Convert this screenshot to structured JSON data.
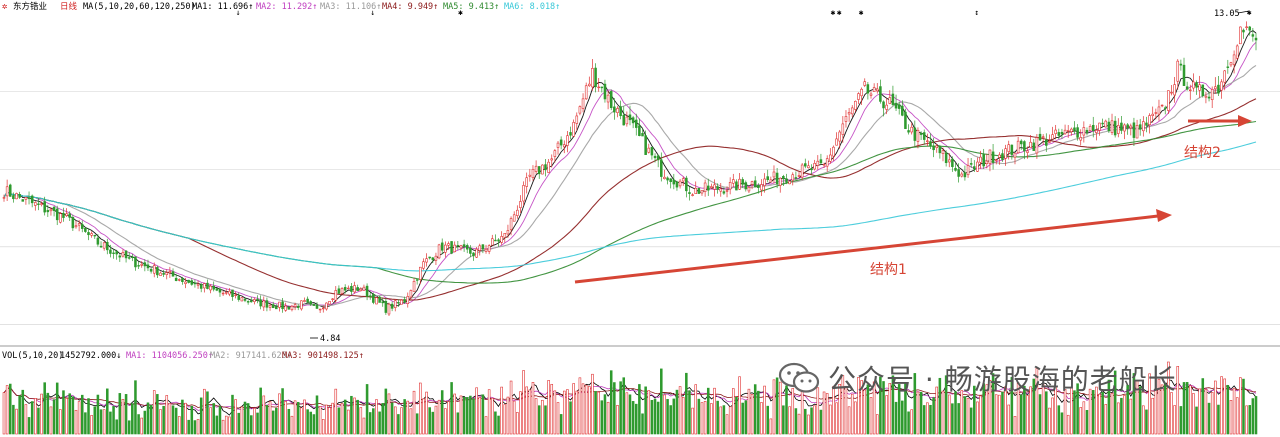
{
  "colors": {
    "up": "#e03030",
    "down": "#2e9a2e",
    "ma5": "#000000",
    "ma10": "#c040c0",
    "ma20": "#a0a0a0",
    "ma60": "#8b1a1a",
    "ma120": "#2f8a2f",
    "ma250": "#38c8d8",
    "grid": "#d0d0d0",
    "annot": "#d64535"
  },
  "header": {
    "stock_name": "东方锆业",
    "period": "日线",
    "ma_params": "MA(5,10,20,60,120,250)",
    "ma1": "MA1: 11.696↑",
    "ma2": "MA2: 11.292↑",
    "ma3": "MA3: 11.106↑",
    "ma4": "MA4: 9.949↑",
    "ma5": "MA5: 9.413↑",
    "ma6": "MA6: 8.018↑"
  },
  "volume_header": {
    "params": "VOL(5,10,20)",
    "vol": "1452792.000↓",
    "ma1": "MA1: 1104056.250↑",
    "ma2": "MA2: 917141.625↑",
    "ma3": "MA3: 901498.125↑"
  },
  "annotations": {
    "high_label": "13.05",
    "low_label": "4.84",
    "structure1": "结构1",
    "structure2": "结构2"
  },
  "watermark": {
    "text": "公众号 · 畅游股海的老船长"
  },
  "chart_data": {
    "type": "candlestick",
    "price_range": [
      4.1,
      13.5
    ],
    "marked_high": 13.05,
    "marked_low": 4.84,
    "anchors": [
      [
        0,
        8.4
      ],
      [
        10,
        8.0
      ],
      [
        20,
        7.6
      ],
      [
        30,
        6.9
      ],
      [
        40,
        6.4
      ],
      [
        55,
        5.9
      ],
      [
        68,
        5.5
      ],
      [
        80,
        5.2
      ],
      [
        90,
        5.05
      ],
      [
        96,
        5.15
      ],
      [
        100,
        4.95
      ],
      [
        106,
        5.5
      ],
      [
        114,
        5.6
      ],
      [
        122,
        5.0
      ],
      [
        128,
        5.25
      ],
      [
        134,
        6.3
      ],
      [
        140,
        6.8
      ],
      [
        150,
        6.6
      ],
      [
        160,
        7.1
      ],
      [
        168,
        8.8
      ],
      [
        175,
        9.3
      ],
      [
        182,
        10.3
      ],
      [
        188,
        11.8
      ],
      [
        194,
        10.9
      ],
      [
        200,
        10.3
      ],
      [
        210,
        9.0
      ],
      [
        220,
        8.4
      ],
      [
        230,
        8.5
      ],
      [
        244,
        8.7
      ],
      [
        256,
        9.0
      ],
      [
        262,
        9.1
      ],
      [
        268,
        10.3
      ],
      [
        275,
        11.3
      ],
      [
        283,
        10.9
      ],
      [
        290,
        10.1
      ],
      [
        300,
        9.4
      ],
      [
        306,
        8.85
      ],
      [
        315,
        9.4
      ],
      [
        330,
        9.8
      ],
      [
        350,
        10.3
      ],
      [
        362,
        10.1
      ],
      [
        370,
        10.7
      ],
      [
        375,
        11.9
      ],
      [
        381,
        11.2
      ],
      [
        388,
        11.4
      ],
      [
        395,
        13.05
      ],
      [
        400,
        12.8
      ]
    ],
    "moving_average_periods": [
      5,
      10,
      20,
      60,
      120,
      250
    ],
    "volume_series": "VOL with MA5, MA10, MA20"
  }
}
